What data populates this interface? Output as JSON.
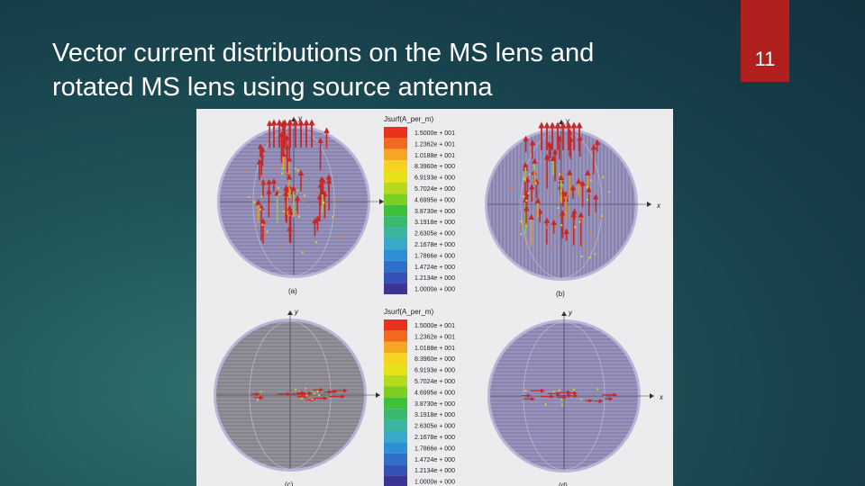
{
  "slide": {
    "title_line1": "Vector current distributions on the MS lens and",
    "title_line2": "rotated MS lens using source antenna",
    "page_number": "11",
    "accent_color": "#b0201f"
  },
  "figure": {
    "legend_title": "Jsurf(A_per_m)",
    "legend_values": [
      "1.5000e + 001",
      "1.2362e + 001",
      "1.0188e + 001",
      "8.3960e + 000",
      "6.9193e + 000",
      "5.7024e + 000",
      "4.6995e + 000",
      "3.8730e + 000",
      "3.1918e + 000",
      "2.6305e + 000",
      "2.1678e + 000",
      "1.7866e + 000",
      "1.4724e + 000",
      "1.2134e + 000",
      "1.0000e + 000"
    ],
    "legend_colors": [
      "#e8321e",
      "#ef6a1e",
      "#f5a623",
      "#f7d21e",
      "#e6e21a",
      "#b8da1e",
      "#7ccf22",
      "#3fbf3a",
      "#39b96e",
      "#3bb5a0",
      "#3aa9c7",
      "#2e8fd4",
      "#2f6fc9",
      "#3451b5",
      "#3d3596"
    ],
    "axis_x": "x",
    "axis_y": "y",
    "panels": [
      {
        "label": "(a)"
      },
      {
        "label": "(b)"
      },
      {
        "label": "(c)"
      },
      {
        "label": "(d)"
      }
    ]
  }
}
